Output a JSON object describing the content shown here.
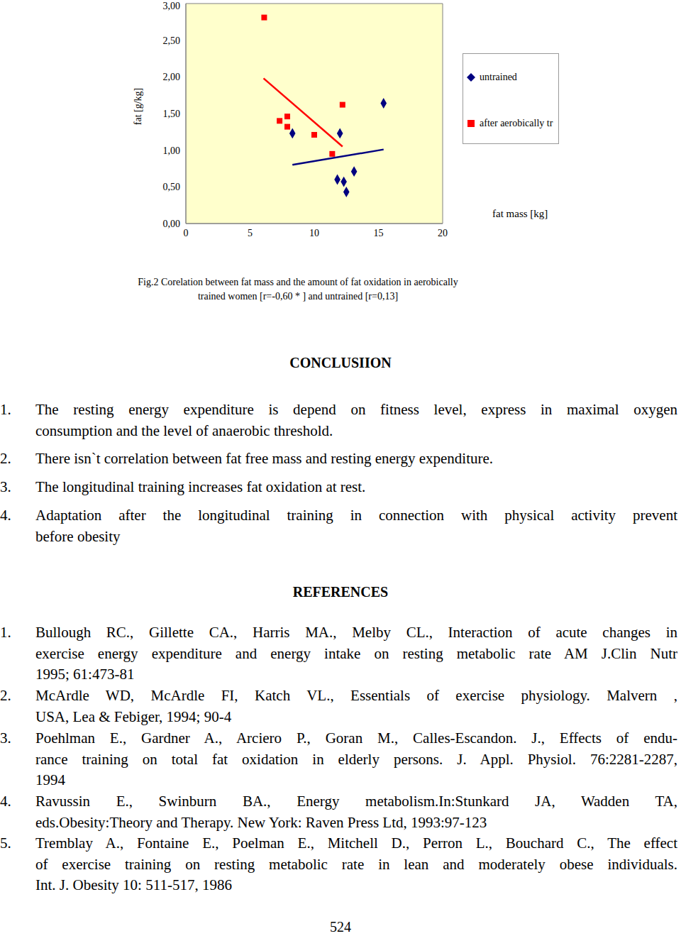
{
  "chart_data": {
    "type": "scatter",
    "x_label": "fat mass [kg]",
    "y_label": "fat [g/kg]",
    "xlim": [
      0,
      20
    ],
    "xticks": [
      0,
      5,
      10,
      15,
      20
    ],
    "ylim": [
      0,
      3
    ],
    "yticks": [
      {
        "value": 0,
        "label": "0,00"
      },
      {
        "value": 0.5,
        "label": "0,50"
      },
      {
        "value": 1,
        "label": "1,00"
      },
      {
        "value": 1.5,
        "label": "1,50"
      },
      {
        "value": 2,
        "label": "2,00"
      },
      {
        "value": 2.5,
        "label": "2,50"
      },
      {
        "value": 3,
        "label": "3,00"
      }
    ],
    "grid": false,
    "legend": "right",
    "series": [
      {
        "name": "untrained",
        "color": "#000080",
        "marker": "diamond",
        "x": [
          8.3,
          12.0,
          15.4,
          11.8,
          12.3,
          13.1,
          12.5
        ],
        "values": [
          1.23,
          1.23,
          1.64,
          0.6,
          0.57,
          0.71,
          0.43
        ],
        "trend_line": {
          "x": [
            8.3,
            15.4
          ],
          "values": [
            0.8,
            1.01
          ]
        }
      },
      {
        "name": "after aerobically tr",
        "color": "#ff0000",
        "marker": "square",
        "x": [
          6.1,
          7.3,
          7.9,
          7.9,
          10.0,
          12.2,
          11.4
        ],
        "values": [
          2.81,
          1.4,
          1.46,
          1.32,
          1.21,
          1.62,
          0.95
        ],
        "trend_line": {
          "x": [
            6.05,
            12.2
          ],
          "values": [
            1.98,
            1.05
          ]
        }
      }
    ]
  },
  "caption": [
    "Fig.2 Corelation between fat mass and the amount of fat oxidation in aerobically",
    "trained women [r=-0,60 * ] and untrained [r=0,13]"
  ],
  "conclusion": {
    "title": "CONCLUSIION",
    "items": [
      {
        "number": "1.",
        "lines": [
          "The resting energy expenditure is depend on fitness level, express in maximal oxygen",
          "consumption and the level of anaerobic threshold."
        ]
      },
      {
        "number": "2.",
        "lines": [
          "There isn`t correlation between fat free mass and resting energy expenditure."
        ]
      },
      {
        "number": "3.",
        "lines": [
          "The longitudinal training increases fat oxidation at rest."
        ]
      },
      {
        "number": "4.",
        "lines": [
          "Adaptation after the longitudinal training in connection with physical activity prevent",
          "before obesity"
        ]
      }
    ]
  },
  "references": {
    "title": "REFERENCES",
    "items": [
      {
        "number": "1.",
        "lines": [
          "Bullough RC., Gillette CA., Harris MA., Melby CL., Interaction of acute changes in",
          "exercise energy expenditure and energy intake on resting metabolic rate AM J.Clin Nutr",
          "1995; 61:473-81"
        ]
      },
      {
        "number": "2.",
        "lines": [
          "McArdle WD, McArdle FI, Katch VL., Essentials of exercise physiology. Malvern ,",
          "USA, Lea & Febiger, 1994; 90-4"
        ]
      },
      {
        "number": "3.",
        "lines": [
          "Poehlman E., Gardner A., Arciero P., Goran M., Calles-Escandon. J., Effects of endu-",
          "rance training on total fat oxidation in elderly persons. J. Appl. Physiol. 76:2281-2287,",
          "1994"
        ]
      },
      {
        "number": "4.",
        "lines": [
          "Ravussin E., Swinburn BA., Energy metabolism.In:Stunkard JA, Wadden TA,",
          "eds.Obesity:Theory and Therapy. New York: Raven Press Ltd, 1993:97-123"
        ]
      },
      {
        "number": "5.",
        "lines": [
          "Tremblay A., Fontaine E., Poelman E., Mitchell D., Perron L., Bouchard C., The effect",
          "of exercise training on resting metabolic rate in lean and moderately obese individuals.",
          "Int. J. Obesity 10: 511-517, 1986"
        ]
      }
    ]
  },
  "page_number": "524"
}
